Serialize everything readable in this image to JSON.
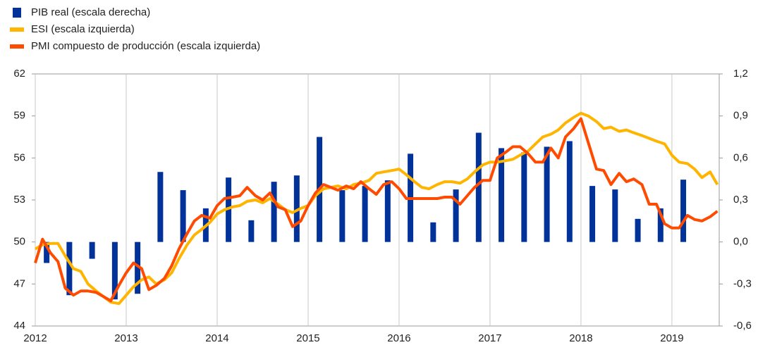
{
  "chart_data": {
    "type": "combo",
    "xlim": [
      2012,
      2019.52
    ],
    "xticks": [
      2012,
      2013,
      2014,
      2015,
      2016,
      2017,
      2018,
      2019
    ],
    "ylim": [
      44,
      62
    ],
    "yticks": [
      44,
      47,
      50,
      53,
      56,
      59,
      62
    ],
    "y2lim": [
      -0.6,
      1.2
    ],
    "y2ticks": [
      {
        "value": -0.6,
        "label": "-0,6"
      },
      {
        "value": -0.3,
        "label": "-0,3"
      },
      {
        "value": 0,
        "label": "0,0"
      },
      {
        "value": 0.3,
        "label": "0,3"
      },
      {
        "value": 0.6,
        "label": "0,6"
      },
      {
        "value": 0.9,
        "label": "0,9"
      },
      {
        "value": 1.2,
        "label": "1,2"
      }
    ],
    "grid": true,
    "x": [
      2012,
      2012.08,
      2012.17,
      2012.25,
      2012.33,
      2012.42,
      2012.5,
      2012.58,
      2012.67,
      2012.75,
      2012.83,
      2012.92,
      2013,
      2013.08,
      2013.17,
      2013.25,
      2013.33,
      2013.42,
      2013.5,
      2013.58,
      2013.67,
      2013.75,
      2013.83,
      2013.92,
      2014,
      2014.08,
      2014.17,
      2014.25,
      2014.33,
      2014.42,
      2014.5,
      2014.58,
      2014.67,
      2014.75,
      2014.83,
      2014.92,
      2015,
      2015.08,
      2015.17,
      2015.25,
      2015.33,
      2015.42,
      2015.5,
      2015.58,
      2015.67,
      2015.75,
      2015.83,
      2015.92,
      2016,
      2016.08,
      2016.17,
      2016.25,
      2016.33,
      2016.42,
      2016.5,
      2016.58,
      2016.67,
      2016.75,
      2016.83,
      2016.92,
      2017,
      2017.08,
      2017.17,
      2017.25,
      2017.33,
      2017.42,
      2017.5,
      2017.58,
      2017.67,
      2017.75,
      2017.83,
      2017.92,
      2018,
      2018.08,
      2018.17,
      2018.25,
      2018.33,
      2018.42,
      2018.5,
      2018.58,
      2018.67,
      2018.75,
      2018.83,
      2018.92,
      2019,
      2019.08,
      2019.17,
      2019.25,
      2019.33,
      2019.42,
      2019.5
    ],
    "series": [
      {
        "name": "PIB real (escala derecha)",
        "color": "#003299",
        "type": "bar",
        "axis": "y2",
        "x": [
          2012.125,
          2012.375,
          2012.625,
          2012.875,
          2013.125,
          2013.375,
          2013.625,
          2013.875,
          2014.125,
          2014.375,
          2014.625,
          2014.875,
          2015.125,
          2015.375,
          2015.625,
          2015.875,
          2016.125,
          2016.375,
          2016.625,
          2016.875,
          2017.125,
          2017.375,
          2017.625,
          2017.875,
          2018.125,
          2018.375,
          2018.625,
          2018.875,
          2019.125
        ],
        "values": [
          -0.15,
          -0.38,
          -0.12,
          -0.41,
          -0.37,
          0.5,
          0.37,
          0.24,
          0.46,
          0.155,
          0.43,
          0.475,
          0.75,
          0.37,
          0.4,
          0.44,
          0.63,
          0.14,
          0.375,
          0.78,
          0.67,
          0.64,
          0.68,
          0.72,
          0.4,
          0.375,
          0.165,
          0.24,
          0.445
        ]
      },
      {
        "name": "ESI (escala izquierda)",
        "color": "#ffb400",
        "type": "line",
        "values": [
          49.5,
          49.8,
          49.9,
          49.9,
          49.0,
          48.1,
          47.9,
          47.0,
          46.5,
          46.1,
          45.7,
          45.6,
          46.2,
          46.8,
          47.3,
          47.5,
          47.0,
          47.3,
          47.8,
          48.8,
          49.8,
          50.5,
          50.9,
          51.4,
          52.0,
          52.3,
          52.5,
          52.6,
          52.9,
          53.0,
          52.8,
          53.1,
          52.7,
          52.3,
          52.1,
          52.4,
          52.6,
          53.3,
          53.8,
          53.9,
          54.0,
          53.8,
          54.1,
          54.2,
          54.4,
          54.9,
          55.0,
          55.1,
          55.2,
          54.8,
          54.3,
          53.9,
          53.8,
          54.1,
          54.3,
          54.3,
          54.2,
          54.5,
          55.0,
          55.5,
          55.7,
          55.7,
          55.8,
          55.9,
          56.2,
          56.5,
          57.0,
          57.5,
          57.7,
          58.0,
          58.5,
          58.9,
          59.2,
          59.0,
          58.6,
          58.1,
          58.2,
          57.9,
          58.0,
          57.8,
          57.6,
          57.4,
          57.2,
          57.0,
          56.2,
          55.7,
          55.6,
          55.2,
          54.6,
          55.0,
          54.1
        ]
      },
      {
        "name": "PMI compuesto de producción (escala izquierda)",
        "color": "#ff4b00",
        "type": "line",
        "values": [
          48.5,
          50.2,
          49.2,
          48.6,
          46.7,
          46.2,
          46.5,
          46.5,
          46.4,
          46.1,
          45.8,
          46.9,
          47.8,
          48.5,
          48.1,
          46.6,
          46.9,
          47.4,
          48.3,
          49.5,
          50.6,
          51.5,
          51.9,
          51.7,
          52.6,
          53.1,
          53.2,
          53.3,
          53.9,
          53.3,
          53.0,
          53.5,
          52.5,
          52.3,
          51.1,
          51.5,
          52.6,
          53.5,
          54.1,
          53.9,
          53.7,
          54.0,
          53.8,
          54.3,
          53.8,
          53.4,
          54.1,
          54.3,
          53.8,
          53.1,
          53.1,
          53.1,
          53.1,
          53.1,
          53.2,
          53.2,
          52.7,
          53.3,
          53.9,
          54.4,
          54.4,
          56.0,
          56.4,
          56.8,
          56.8,
          56.3,
          55.7,
          55.7,
          56.7,
          56.0,
          57.5,
          58.1,
          58.8,
          57.1,
          55.2,
          55.1,
          54.1,
          54.9,
          54.3,
          54.5,
          54.1,
          52.7,
          52.7,
          51.3,
          51.0,
          51.0,
          51.9,
          51.6,
          51.5,
          51.8,
          52.2
        ]
      }
    ]
  }
}
